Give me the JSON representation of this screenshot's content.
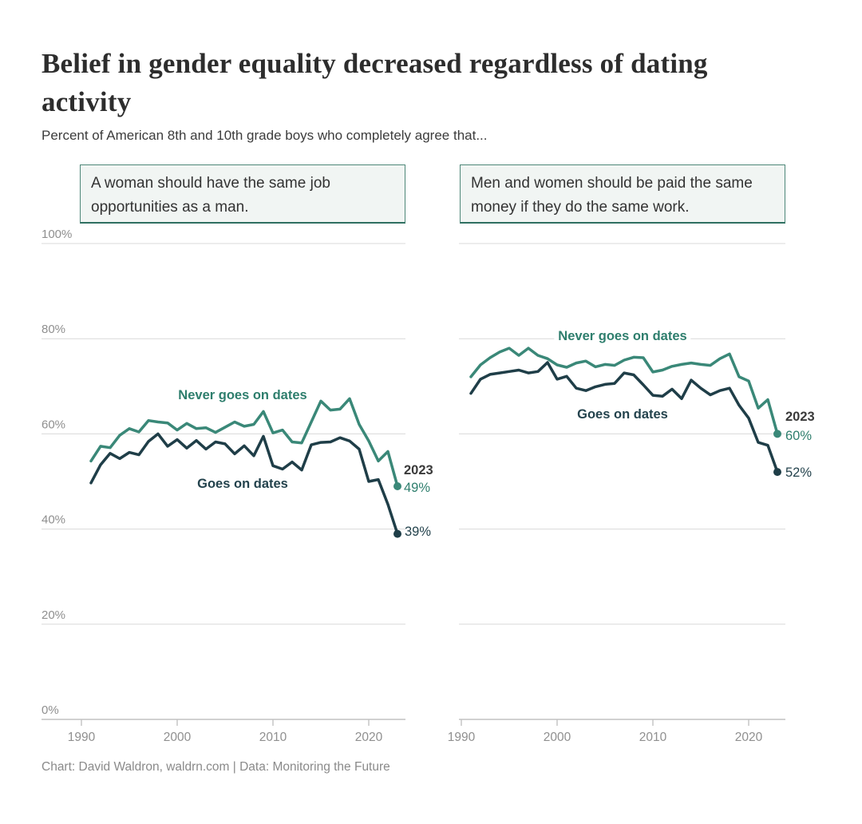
{
  "title": "Belief in gender equality decreased regardless of dating activity",
  "subtitle": "Percent of American 8th and 10th grade boys who completely agree that...",
  "footer": "Chart: David Waldron, waldrn.com | Data: Monitoring the Future",
  "colors": {
    "teal_line": "#3a8878",
    "dark_line": "#1f3e48",
    "teal_label": "#2e7e6d",
    "dark_label": "#24434d",
    "grid": "#d9d9d9",
    "axis": "#c2c2c2",
    "tick_text": "#8f8f8f",
    "box_border": "#4e8779",
    "box_fill": "#f1f5f3"
  },
  "chart_data": [
    {
      "type": "line",
      "title": "A woman should have the same job opportunities as a man.",
      "xlabel": "",
      "ylabel": "",
      "xlim": [
        1989,
        2024
      ],
      "ylim": [
        0,
        100
      ],
      "grid": "on",
      "legend_position": "inline-labels",
      "xticks": [
        1990,
        2000,
        2010,
        2020
      ],
      "yticks": [
        0,
        20,
        40,
        60,
        80,
        100
      ],
      "ytick_labels": [
        "0%",
        "20%",
        "40%",
        "60%",
        "80%",
        "100%"
      ],
      "x": [
        1991,
        1992,
        1993,
        1994,
        1995,
        1996,
        1997,
        1998,
        1999,
        2000,
        2001,
        2002,
        2003,
        2004,
        2005,
        2006,
        2007,
        2008,
        2009,
        2010,
        2011,
        2012,
        2013,
        2014,
        2015,
        2016,
        2017,
        2018,
        2019,
        2020,
        2021,
        2022,
        2023
      ],
      "series": [
        {
          "name": "Never goes on dates",
          "color": "#3a8878",
          "values": [
            54.3,
            57.4,
            57.1,
            59.7,
            61.1,
            60.4,
            62.8,
            62.5,
            62.3,
            60.8,
            62.2,
            61.1,
            61.3,
            60.3,
            61.4,
            62.5,
            61.6,
            62,
            64.7,
            60.2,
            60.8,
            58.3,
            58.1,
            62.5,
            66.9,
            65,
            65.2,
            67.4,
            62,
            58.5,
            54.3,
            56.3,
            49
          ],
          "end_value_label": "49%"
        },
        {
          "name": "Goes on dates",
          "color": "#1f3e48",
          "values": [
            49.7,
            53.5,
            55.9,
            54.8,
            56.1,
            55.6,
            58.4,
            60,
            57.4,
            58.8,
            57,
            58.6,
            56.8,
            58.3,
            57.9,
            55.8,
            57.5,
            55.4,
            59.5,
            53.3,
            52.6,
            54.1,
            52.4,
            57.7,
            58.2,
            58.3,
            59.2,
            58.5,
            56.8,
            50,
            50.4,
            45.2,
            39
          ],
          "end_value_label": "39%"
        }
      ],
      "end_label_year": "2023"
    },
    {
      "type": "line",
      "title": "Men and women should be paid the same money if they do the same work.",
      "xlabel": "",
      "ylabel": "",
      "xlim": [
        1989,
        2024
      ],
      "ylim": [
        0,
        100
      ],
      "grid": "on",
      "legend_position": "inline-labels",
      "xticks": [
        1990,
        2000,
        2010,
        2020
      ],
      "yticks": [
        0,
        20,
        40,
        60,
        80,
        100
      ],
      "ytick_labels": [
        "0%",
        "20%",
        "40%",
        "60%",
        "80%",
        "100%"
      ],
      "x": [
        1991,
        1992,
        1993,
        1994,
        1995,
        1996,
        1997,
        1998,
        1999,
        2000,
        2001,
        2002,
        2003,
        2004,
        2005,
        2006,
        2007,
        2008,
        2009,
        2010,
        2011,
        2012,
        2013,
        2014,
        2015,
        2016,
        2017,
        2018,
        2019,
        2020,
        2021,
        2022,
        2023
      ],
      "series": [
        {
          "name": "Never goes on dates",
          "color": "#3a8878",
          "values": [
            72,
            74.5,
            76,
            77.2,
            78,
            76.5,
            78,
            76.5,
            75.8,
            74.5,
            74,
            74.9,
            75.3,
            74.1,
            74.6,
            74.4,
            75.5,
            76.1,
            76,
            73,
            73.4,
            74.2,
            74.6,
            74.9,
            74.6,
            74.4,
            75.8,
            76.8,
            72,
            71.1,
            65.4,
            67.2,
            60
          ],
          "end_value_label": "60%"
        },
        {
          "name": "Goes on dates",
          "color": "#1f3e48",
          "values": [
            68.5,
            71.5,
            72.5,
            72.8,
            73.1,
            73.4,
            72.8,
            73.1,
            75,
            71.5,
            72.1,
            69.6,
            69.1,
            69.9,
            70.4,
            70.6,
            72.8,
            72.4,
            70.3,
            68.1,
            67.9,
            69.4,
            67.4,
            71.3,
            69.6,
            68.2,
            69.1,
            69.6,
            66,
            63.3,
            58.2,
            57.6,
            52
          ],
          "end_value_label": "52%"
        }
      ],
      "end_label_year": "2023"
    }
  ]
}
